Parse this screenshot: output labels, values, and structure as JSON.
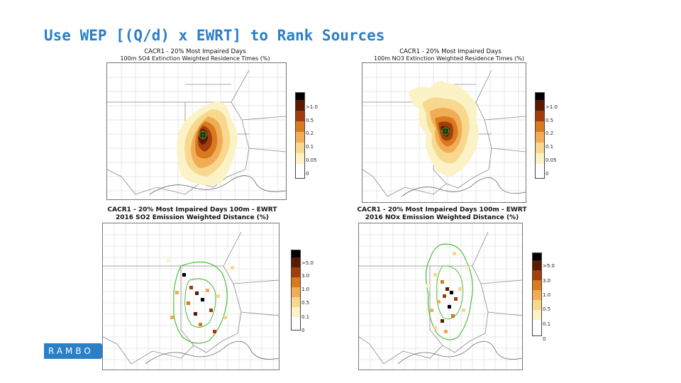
{
  "slide": {
    "title": "Use WEP [(Q/d) x EWRT] to Rank Sources",
    "logo_text": "RAMBO"
  },
  "panels": [
    {
      "id": "so4-ewrt",
      "title_line1": "CACR1 - 20% Most Impaired Days",
      "title_line2": "100m SO4 Extinction Weighted Residence Times (%)",
      "colorbar": {
        "labels": [
          ">1.0",
          "0.5",
          "0.2",
          "0.1",
          "0.05",
          "0"
        ],
        "colors": [
          "#000000",
          "#5a1a00",
          "#a33d0d",
          "#d97a1f",
          "#f0ad55",
          "#f8d88e",
          "#fbf3c6",
          "#ffffff"
        ]
      }
    },
    {
      "id": "no3-ewrt",
      "title_line1": "CACR1 - 20% Most Impaired Days",
      "title_line2": "100m NO3 Extinction Weighted Residence Times (%)",
      "colorbar": {
        "labels": [
          ">1.0",
          "0.5",
          "0.2",
          "0.1",
          "0.05",
          "0"
        ],
        "colors": [
          "#000000",
          "#5a1a00",
          "#a33d0d",
          "#d97a1f",
          "#f0ad55",
          "#f8d88e",
          "#fbf3c6",
          "#ffffff"
        ]
      }
    },
    {
      "id": "so2-ewd",
      "title_line1": "CACR1 - 20% Most Impaired Days 100m - EWRT",
      "title_line2": "2016 SO2 Emission Weighted Distance (%)",
      "colorbar": {
        "labels": [
          ">5.0",
          "3.0",
          "1.0",
          "0.5",
          "0.1",
          "0"
        ],
        "colors": [
          "#000000",
          "#5a1a00",
          "#a33d0d",
          "#d97a1f",
          "#f0ad55",
          "#f8d88e",
          "#fbf3c6",
          "#ffffff"
        ]
      }
    },
    {
      "id": "nox-ewd",
      "title_line1": "CACR1 - 20% Most Impaired Days 100m - EWRT",
      "title_line2": "2016 NOx Emission Weighted Distance (%)",
      "colorbar": {
        "labels": [
          ">5.0",
          "3.0",
          "1.0",
          "0.5",
          "0.1",
          "0"
        ],
        "colors": [
          "#000000",
          "#5a1a00",
          "#a33d0d",
          "#d97a1f",
          "#f0ad55",
          "#f8d88e",
          "#fbf3c6",
          "#ffffff"
        ]
      }
    }
  ]
}
